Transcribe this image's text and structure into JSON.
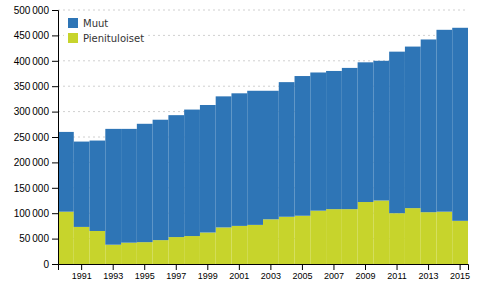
{
  "chart_data": {
    "type": "bar",
    "stacked": true,
    "categories": [
      null,
      "1991",
      null,
      "1993",
      null,
      "1995",
      null,
      "1997",
      null,
      "1999",
      null,
      "2001",
      null,
      "2003",
      null,
      "2005",
      null,
      "2007",
      null,
      "2009",
      null,
      "2011",
      null,
      "2013",
      null,
      "2015"
    ],
    "series": [
      {
        "name": "Pienituloiset",
        "color": "#c7d42c",
        "values": [
          103000,
          73000,
          65000,
          38000,
          42000,
          43000,
          47000,
          53000,
          55000,
          62000,
          72000,
          75000,
          77000,
          88000,
          93000,
          95000,
          105000,
          108000,
          108000,
          122000,
          125000,
          100000,
          110000,
          102000,
          103000,
          85000
        ]
      },
      {
        "name": "Muut",
        "color": "#2e75b6",
        "values": [
          157000,
          168000,
          178000,
          228000,
          224000,
          233000,
          237000,
          240000,
          249000,
          251000,
          258000,
          261000,
          264000,
          253000,
          265000,
          275000,
          272000,
          272000,
          278000,
          275000,
          275000,
          318000,
          318000,
          340000,
          358000,
          380000
        ]
      }
    ],
    "ylim": [
      0,
      500000
    ],
    "yticks": [
      0,
      {
        "value": 50000,
        "label": "50 000"
      },
      {
        "value": 100000,
        "label": "100 000"
      },
      {
        "value": 150000,
        "label": "150 000"
      },
      {
        "value": 200000,
        "label": "200 000"
      },
      {
        "value": 250000,
        "label": "250 000"
      },
      {
        "value": 300000,
        "label": "300 000"
      },
      {
        "value": 350000,
        "label": "350 000"
      },
      {
        "value": 400000,
        "label": "400 000"
      },
      {
        "value": 450000,
        "label": "450 000"
      },
      {
        "value": 500000,
        "label": "500 000"
      }
    ],
    "grid": true,
    "legend": "upper left"
  }
}
